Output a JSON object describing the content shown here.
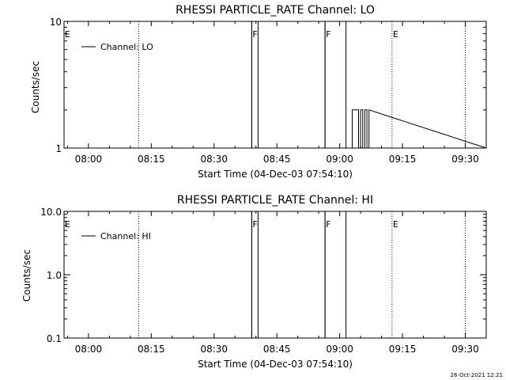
{
  "chart_data": [
    {
      "type": "line",
      "title": "RHESSI PARTICLE_RATE Channel: LO",
      "xlabel": "Start Time (04-Dec-03 07:54:10)",
      "ylabel": "Counts/sec",
      "yscale": "log",
      "ylim": [
        1,
        10
      ],
      "yticks": [
        "1",
        "10"
      ],
      "xlim": [
        "07:54:10",
        "09:35:00"
      ],
      "xticks": [
        "08:00",
        "08:15",
        "08:30",
        "08:45",
        "09:00",
        "09:15",
        "09:30"
      ],
      "grid": false,
      "legend_position": "top-left",
      "series": [
        {
          "name": "Channel: LO",
          "x": [
            "07:54:10",
            "08:39:00",
            "08:39:00",
            "08:40:30",
            "08:40:30",
            "08:56:30",
            "08:56:30",
            "09:01:30",
            "09:01:30",
            "09:03:00",
            "09:03:00",
            "09:04:30",
            "09:04:30",
            "09:05:00",
            "09:05:00",
            "09:05:30",
            "09:05:30",
            "09:06:00",
            "09:06:00",
            "09:06:30",
            "09:06:30",
            "09:07:00",
            "09:07:00",
            "09:35:00"
          ],
          "y": [
            1,
            1,
            10,
            10,
            1,
            1,
            10,
            10,
            1,
            1,
            2,
            2,
            1,
            1,
            2,
            2,
            1,
            1,
            2,
            2,
            1,
            1,
            2,
            1
          ]
        }
      ],
      "markers": [
        {
          "label": "E",
          "time": "07:54:10",
          "line": "none"
        },
        {
          "label": "",
          "time": "08:12:00",
          "line": "dotted"
        },
        {
          "label": "F",
          "time": "08:39:00",
          "line": "solid"
        },
        {
          "label": "F",
          "time": "08:56:30",
          "line": "solid"
        },
        {
          "label": "E",
          "time": "09:12:30",
          "line": "dotted"
        },
        {
          "label": "",
          "time": "09:30:00",
          "line": "dotted"
        }
      ]
    },
    {
      "type": "line",
      "title": "RHESSI PARTICLE_RATE Channel: HI",
      "xlabel": "Start Time (04-Dec-03 07:54:10)",
      "ylabel": "Counts/sec",
      "yscale": "log",
      "ylim": [
        0.1,
        10
      ],
      "yticks": [
        "0.1",
        "1.0",
        "10.0"
      ],
      "xlim": [
        "07:54:10",
        "09:35:00"
      ],
      "xticks": [
        "08:00",
        "08:15",
        "08:30",
        "08:45",
        "09:00",
        "09:15",
        "09:30"
      ],
      "grid": false,
      "legend_position": "top-left",
      "series": [
        {
          "name": "Channel: HI",
          "x": [
            "07:54:10",
            "08:39:00",
            "08:39:00",
            "08:40:30",
            "08:40:30",
            "08:56:30",
            "08:56:30",
            "09:01:30",
            "09:01:30",
            "09:35:00"
          ],
          "y": [
            0.1,
            0.1,
            10,
            10,
            0.1,
            0.1,
            10,
            10,
            0.1,
            0.1
          ]
        }
      ],
      "markers": [
        {
          "label": "E",
          "time": "07:54:10",
          "line": "none"
        },
        {
          "label": "",
          "time": "08:12:00",
          "line": "dotted"
        },
        {
          "label": "F",
          "time": "08:39:00",
          "line": "solid"
        },
        {
          "label": "F",
          "time": "08:56:30",
          "line": "solid"
        },
        {
          "label": "E",
          "time": "09:12:30",
          "line": "dotted"
        },
        {
          "label": "",
          "time": "09:30:00",
          "line": "dotted"
        }
      ]
    }
  ],
  "footer": {
    "timestamp": "26-Oct-2021 12:21"
  }
}
